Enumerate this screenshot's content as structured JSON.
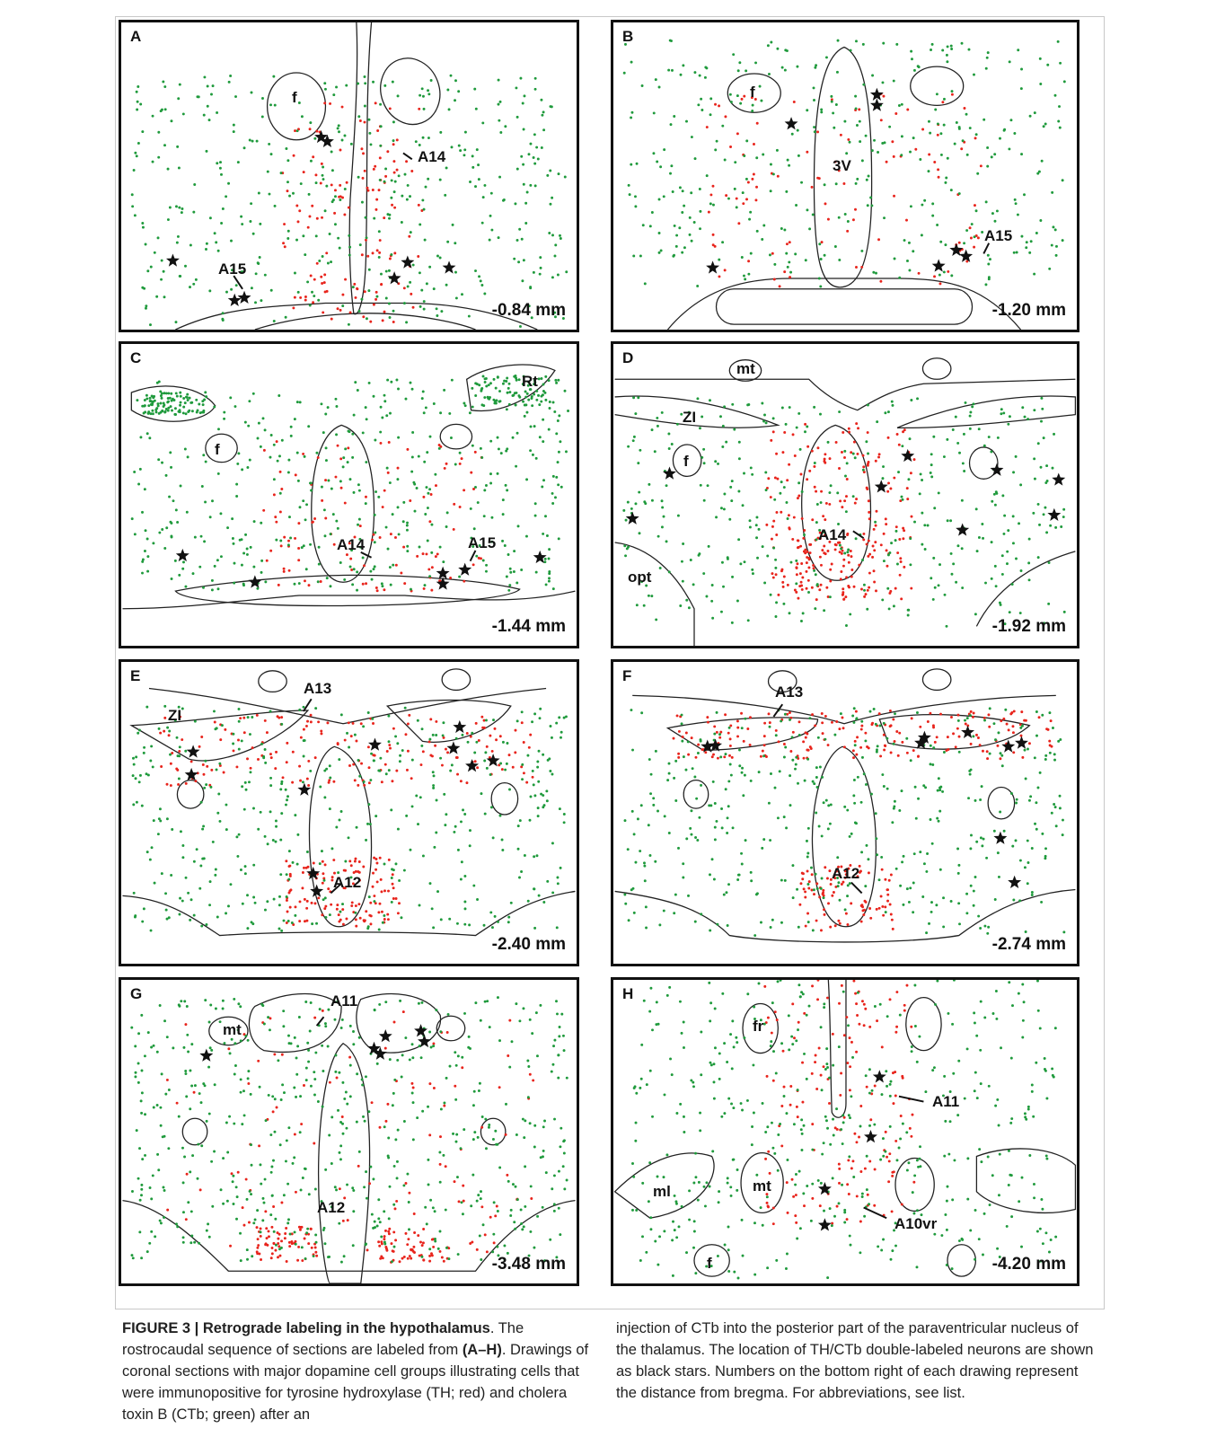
{
  "colors": {
    "th_red": "#e8241c",
    "ctb_green": "#1f9a3c",
    "star": "#111111",
    "outline": "#222222"
  },
  "panels": [
    {
      "id": "A",
      "distance": "-0.84 mm",
      "labels": [
        "f",
        "A14",
        "A15"
      ]
    },
    {
      "id": "B",
      "distance": "-1.20 mm",
      "labels": [
        "f",
        "3V",
        "A15"
      ]
    },
    {
      "id": "C",
      "distance": "-1.44 mm",
      "labels": [
        "Rt",
        "f",
        "A14",
        "A15"
      ]
    },
    {
      "id": "D",
      "distance": "-1.92 mm",
      "labels": [
        "mt",
        "ZI",
        "f",
        "A14",
        "opt"
      ]
    },
    {
      "id": "E",
      "distance": "-2.40 mm",
      "labels": [
        "ZI",
        "A13",
        "A12"
      ]
    },
    {
      "id": "F",
      "distance": "-2.74 mm",
      "labels": [
        "A13",
        "A12"
      ]
    },
    {
      "id": "G",
      "distance": "-3.48 mm",
      "labels": [
        "mt",
        "A11",
        "A12"
      ]
    },
    {
      "id": "H",
      "distance": "-4.20 mm",
      "labels": [
        "fr",
        "A11",
        "ml",
        "mt",
        "A10vr",
        "f"
      ]
    }
  ],
  "caption": {
    "figure_label": "FIGURE 3 | Retrograde labeling in the hypothalamus",
    "text_1": ". The rostrocaudal sequence of sections are labeled from ",
    "range": "(A–H)",
    "text_2": ". Drawings of coronal sections with major dopamine cell groups illustrating cells that were immunopositive for tyrosine hydroxylase (TH; red) and cholera toxin B (CTb; green) after an",
    "text_right": "injection of CTb into the posterior part of the paraventricular nucleus of the thalamus. The location of TH/CTb double-labeled neurons are shown as black stars. Numbers on the bottom right of each drawing represent the distance from bregma. For abbreviations, see list."
  }
}
